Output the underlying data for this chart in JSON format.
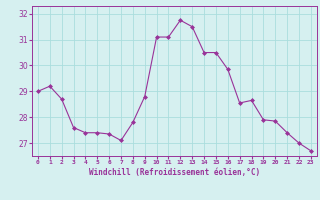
{
  "x": [
    0,
    1,
    2,
    3,
    4,
    5,
    6,
    7,
    8,
    9,
    10,
    11,
    12,
    13,
    14,
    15,
    16,
    17,
    18,
    19,
    20,
    21,
    22,
    23
  ],
  "y": [
    29.0,
    29.2,
    28.7,
    27.6,
    27.4,
    27.4,
    27.35,
    27.1,
    27.8,
    28.8,
    31.1,
    31.1,
    31.75,
    31.5,
    30.5,
    30.5,
    29.85,
    28.55,
    28.65,
    27.9,
    27.85,
    27.4,
    27.0,
    26.7
  ],
  "line_color": "#993399",
  "marker": "D",
  "marker_size": 2,
  "bg_color": "#d6f0f0",
  "grid_color": "#aadddd",
  "xlabel": "Windchill (Refroidissement éolien,°C)",
  "xlabel_color": "#993399",
  "tick_color": "#993399",
  "ylim": [
    26.5,
    32.3
  ],
  "xlim": [
    -0.5,
    23.5
  ],
  "yticks": [
    27,
    28,
    29,
    30,
    31,
    32
  ],
  "xtick_labels": [
    "0",
    "1",
    "2",
    "3",
    "4",
    "5",
    "6",
    "7",
    "8",
    "9",
    "10",
    "11",
    "12",
    "13",
    "14",
    "15",
    "16",
    "17",
    "18",
    "19",
    "20",
    "21",
    "22",
    "23"
  ]
}
